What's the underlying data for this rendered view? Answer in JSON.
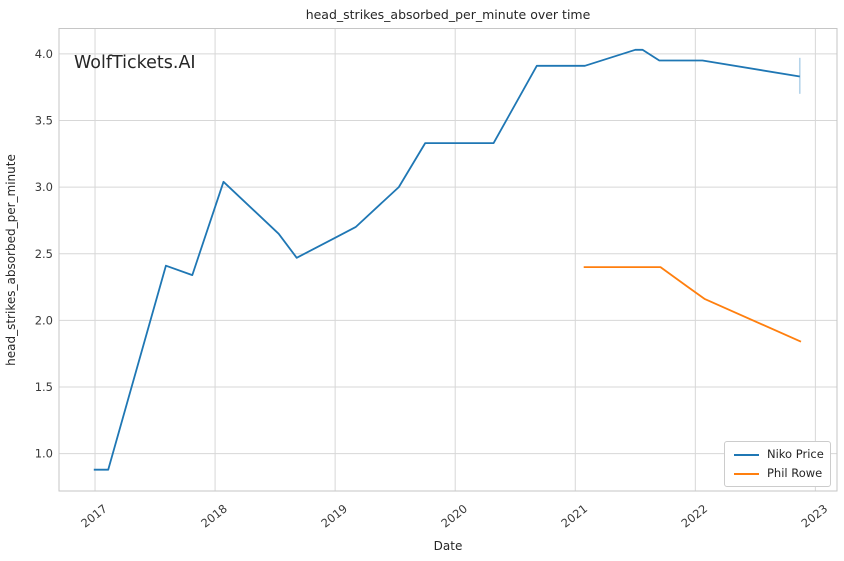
{
  "figure": {
    "title": "head_strikes_absorbed_per_minute over time",
    "watermark": "WolfTickets.AI",
    "xlabel": "Date",
    "ylabel": "head_strikes_absorbed_per_minute"
  },
  "legend": {
    "items": [
      {
        "label": "Niko Price",
        "color": "#1f77b4"
      },
      {
        "label": "Phil Rowe",
        "color": "#ff7f0e"
      }
    ]
  },
  "chart_data": {
    "type": "line",
    "title": "head_strikes_absorbed_per_minute over time",
    "xlabel": "Date",
    "ylabel": "head_strikes_absorbed_per_minute",
    "xlim": [
      2016.7,
      2023.18
    ],
    "ylim": [
      0.72,
      4.19
    ],
    "xticks": [
      "2017",
      "2018",
      "2019",
      "2020",
      "2021",
      "2022",
      "2023"
    ],
    "yticks": [
      "1.0",
      "1.5",
      "2.0",
      "2.5",
      "3.0",
      "3.5",
      "4.0"
    ],
    "grid": true,
    "legend_position": "lower right",
    "series": [
      {
        "name": "Niko Price",
        "color": "#1f77b4",
        "points": [
          [
            2016.99,
            0.88
          ],
          [
            2017.11,
            0.88
          ],
          [
            2017.59,
            2.41
          ],
          [
            2017.81,
            2.34
          ],
          [
            2018.07,
            3.04
          ],
          [
            2018.53,
            2.65
          ],
          [
            2018.68,
            2.47
          ],
          [
            2019.0,
            2.62
          ],
          [
            2019.17,
            2.7
          ],
          [
            2019.53,
            3.0
          ],
          [
            2019.75,
            3.33
          ],
          [
            2020.32,
            3.33
          ],
          [
            2020.68,
            3.91
          ],
          [
            2021.08,
            3.91
          ],
          [
            2021.5,
            4.03
          ],
          [
            2021.56,
            4.03
          ],
          [
            2021.7,
            3.95
          ],
          [
            2022.06,
            3.95
          ],
          [
            2022.87,
            3.83
          ]
        ]
      },
      {
        "name": "Phil Rowe",
        "color": "#ff7f0e",
        "points": [
          [
            2021.07,
            2.4
          ],
          [
            2021.71,
            2.4
          ],
          [
            2021.94,
            2.25
          ],
          [
            2022.08,
            2.16
          ],
          [
            2022.88,
            1.84
          ]
        ]
      }
    ],
    "error_bar": {
      "series": "Niko Price",
      "x": 2022.87,
      "y_low": 3.7,
      "y_high": 3.97,
      "color": "#b5d4ea"
    },
    "colors": {
      "grid": "#d7d7d7",
      "spine": "#c6c6c6",
      "watermark": "#d4d4d4"
    }
  }
}
